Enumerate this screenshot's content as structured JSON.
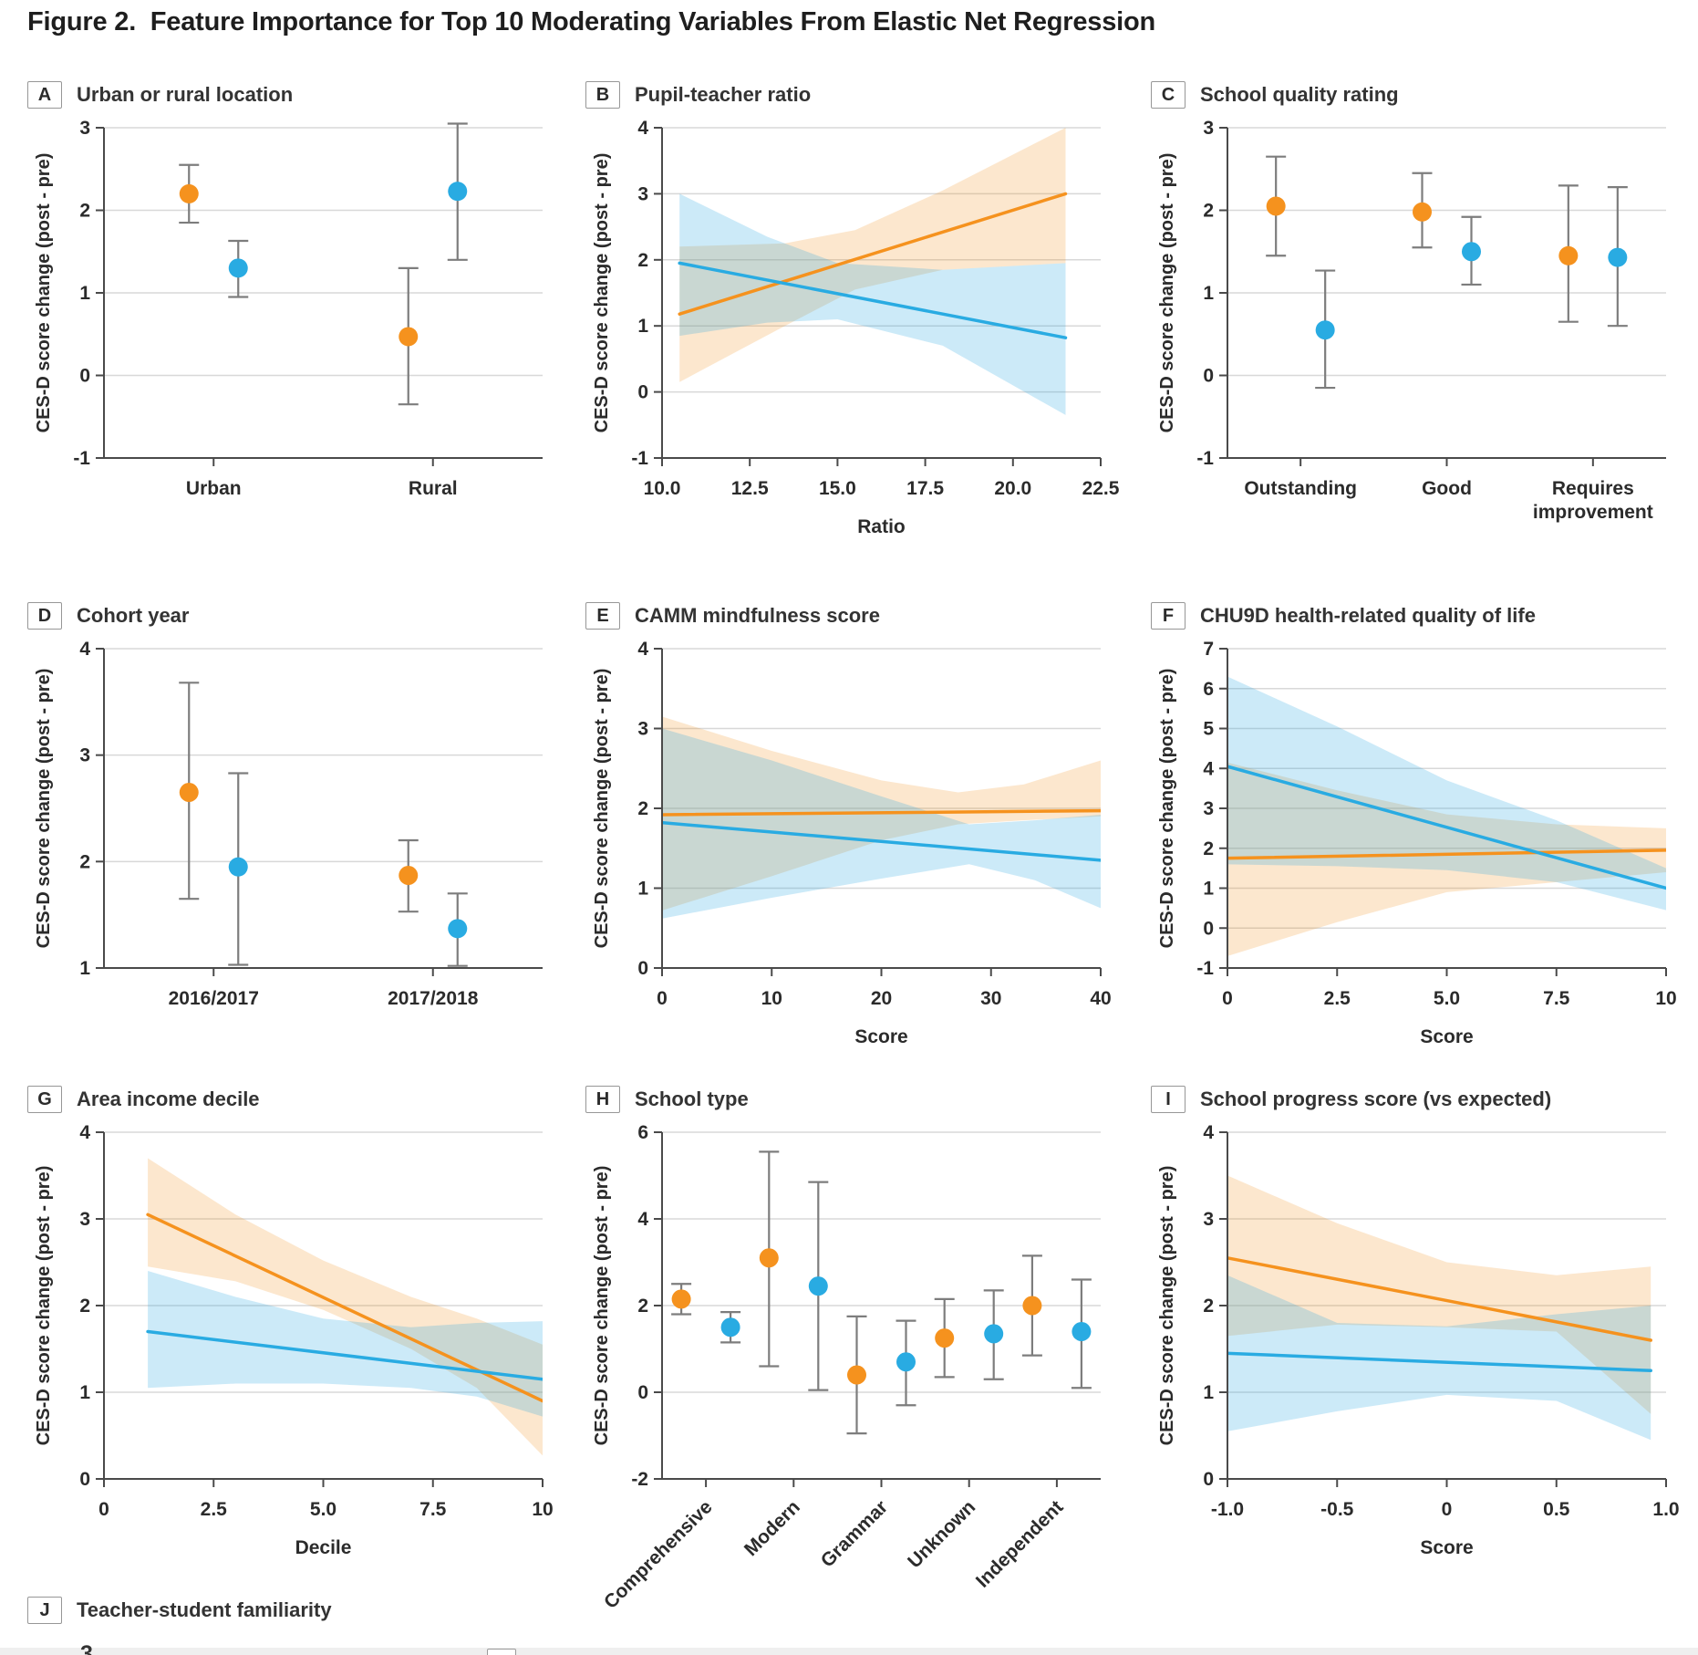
{
  "figure_title": "Figure 2.  Feature Importance for Top 10 Moderating Variables From Elastic Net Regression",
  "ylabel": "CES-D score change (post - pre)",
  "colors": {
    "orange": "#F5921E",
    "blue": "#29ABE2",
    "orange_band": "rgba(243,146,30,0.22)",
    "blue_band": "rgba(43,169,224,0.24)",
    "errorbar": "#7D7D7D",
    "axis": "#4A4A4A",
    "grid": "#D8D8D8",
    "text": "#2B2B2B"
  },
  "partial_bottom": {
    "tick_label": "3"
  },
  "chart_data": [
    {
      "letter": "A",
      "title": "Urban or rural location",
      "type": "pointrange",
      "ylabel": "CES-D score change (post - pre)",
      "ylim": [
        -1,
        3
      ],
      "yticks": [
        "3",
        "2",
        "1",
        "0",
        "-1"
      ],
      "categories": [
        "Urban",
        "Rural"
      ],
      "series": [
        {
          "name": "orange",
          "points": [
            [
              2.2,
              1.85,
              2.55
            ],
            [
              0.47,
              -0.35,
              1.3
            ]
          ]
        },
        {
          "name": "blue",
          "points": [
            [
              1.3,
              0.95,
              1.63
            ],
            [
              2.23,
              1.4,
              3.05
            ]
          ]
        }
      ]
    },
    {
      "letter": "B",
      "title": "Pupil-teacher ratio",
      "type": "lineband",
      "ylabel": "CES-D score change (post - pre)",
      "ylim": [
        -1,
        4
      ],
      "yticks": [
        "4",
        "3",
        "2",
        "1",
        "0",
        "-1"
      ],
      "xlim": [
        10,
        22.5
      ],
      "xticks": [
        "10.0",
        "12.5",
        "15.0",
        "17.5",
        "20.0",
        "22.5"
      ],
      "xlabel": "Ratio",
      "series": [
        {
          "name": "orange",
          "line": [
            [
              10.5,
              1.18
            ],
            [
              21.5,
              3.0
            ]
          ],
          "band": {
            "x": [
              10.5,
              13.5,
              15.5,
              18,
              21.5
            ],
            "hi": [
              2.2,
              2.25,
              2.45,
              3.05,
              4.0
            ],
            "lo": [
              0.15,
              1.0,
              1.55,
              1.85,
              1.95
            ]
          }
        },
        {
          "name": "blue",
          "line": [
            [
              10.5,
              1.95
            ],
            [
              21.5,
              0.82
            ]
          ],
          "band": {
            "x": [
              10.5,
              13,
              15,
              18,
              21.5
            ],
            "hi": [
              3.0,
              2.35,
              1.95,
              1.85,
              1.95
            ],
            "lo": [
              0.85,
              1.05,
              1.1,
              0.7,
              -0.35
            ]
          }
        }
      ]
    },
    {
      "letter": "C",
      "title": "School quality rating",
      "type": "pointrange",
      "ylabel": "CES-D score change (post - pre)",
      "ylim": [
        -1,
        3
      ],
      "yticks": [
        "3",
        "2",
        "1",
        "0",
        "-1"
      ],
      "categories": [
        "Outstanding",
        "Good",
        "Requires\nimprovement"
      ],
      "series": [
        {
          "name": "orange",
          "points": [
            [
              2.05,
              1.45,
              2.65
            ],
            [
              1.98,
              1.55,
              2.45
            ],
            [
              1.45,
              0.65,
              2.3
            ]
          ]
        },
        {
          "name": "blue",
          "points": [
            [
              0.55,
              -0.15,
              1.27
            ],
            [
              1.5,
              1.1,
              1.92
            ],
            [
              1.43,
              0.6,
              2.28
            ]
          ]
        }
      ]
    },
    {
      "letter": "D",
      "title": "Cohort year",
      "type": "pointrange",
      "ylabel": "CES-D score change (post - pre)",
      "ylim": [
        1,
        4
      ],
      "yticks": [
        "4",
        "3",
        "2",
        "1"
      ],
      "categories": [
        "2016/2017",
        "2017/2018"
      ],
      "series": [
        {
          "name": "orange",
          "points": [
            [
              2.65,
              1.65,
              3.68
            ],
            [
              1.87,
              1.53,
              2.2
            ]
          ]
        },
        {
          "name": "blue",
          "points": [
            [
              1.95,
              1.03,
              2.83
            ],
            [
              1.37,
              1.02,
              1.7
            ]
          ]
        }
      ]
    },
    {
      "letter": "E",
      "title": "CAMM mindfulness score",
      "type": "lineband",
      "ylabel": "CES-D score change (post - pre)",
      "ylim": [
        0,
        4
      ],
      "yticks": [
        "4",
        "3",
        "2",
        "1",
        "0"
      ],
      "xlim": [
        0,
        40
      ],
      "xticks": [
        "0",
        "10",
        "20",
        "30",
        "40"
      ],
      "xlabel": "Score",
      "series": [
        {
          "name": "orange",
          "line": [
            [
              0,
              1.92
            ],
            [
              40,
              1.97
            ]
          ],
          "band": {
            "x": [
              0,
              10,
              20,
              27,
              33,
              40
            ],
            "hi": [
              3.15,
              2.72,
              2.35,
              2.2,
              2.3,
              2.6
            ],
            "lo": [
              0.72,
              1.15,
              1.6,
              1.8,
              1.85,
              1.9
            ]
          }
        },
        {
          "name": "blue",
          "line": [
            [
              0,
              1.82
            ],
            [
              40,
              1.35
            ]
          ],
          "band": {
            "x": [
              0,
              10,
              20,
              28,
              34,
              40
            ],
            "hi": [
              3.0,
              2.6,
              2.15,
              1.8,
              1.85,
              1.92
            ],
            "lo": [
              0.62,
              0.88,
              1.12,
              1.3,
              1.1,
              0.75
            ]
          }
        }
      ]
    },
    {
      "letter": "F",
      "title": "CHU9D health-related quality of life",
      "type": "lineband",
      "ylabel": "CES-D score change (post - pre)",
      "ylim": [
        -1,
        7
      ],
      "yticks": [
        "7",
        "6",
        "5",
        "4",
        "3",
        "2",
        "1",
        "0",
        "-1"
      ],
      "xlim": [
        0,
        10
      ],
      "xticks": [
        "0",
        "2.5",
        "5.0",
        "7.5",
        "10"
      ],
      "xlabel": "Score",
      "series": [
        {
          "name": "orange",
          "line": [
            [
              0,
              1.75
            ],
            [
              10,
              1.95
            ]
          ],
          "band": {
            "x": [
              0,
              2.5,
              5,
              7.5,
              10
            ],
            "hi": [
              4.15,
              3.45,
              2.85,
              2.6,
              2.5
            ],
            "lo": [
              -0.7,
              0.15,
              0.9,
              1.15,
              1.4
            ]
          }
        },
        {
          "name": "blue",
          "line": [
            [
              0,
              4.05
            ],
            [
              10,
              1.0
            ]
          ],
          "band": {
            "x": [
              0,
              2.5,
              5,
              7.5,
              10
            ],
            "hi": [
              6.3,
              5.05,
              3.7,
              2.7,
              1.5
            ],
            "lo": [
              1.6,
              1.55,
              1.45,
              1.15,
              0.45
            ]
          }
        }
      ]
    },
    {
      "letter": "G",
      "title": "Area income decile",
      "type": "lineband",
      "ylabel": "CES-D score change (post - pre)",
      "ylim": [
        0,
        4
      ],
      "yticks": [
        "4",
        "3",
        "2",
        "1",
        "0"
      ],
      "xlim": [
        0,
        10
      ],
      "xticks": [
        "0",
        "2.5",
        "5.0",
        "7.5",
        "10"
      ],
      "xlabel": "Decile",
      "series": [
        {
          "name": "orange",
          "line": [
            [
              1,
              3.05
            ],
            [
              10,
              0.9
            ]
          ],
          "band": {
            "x": [
              1,
              3,
              5,
              7,
              8.5,
              10
            ],
            "hi": [
              3.7,
              3.05,
              2.52,
              2.1,
              1.85,
              1.55
            ],
            "lo": [
              2.45,
              2.28,
              1.95,
              1.5,
              1.05,
              0.27
            ]
          }
        },
        {
          "name": "blue",
          "line": [
            [
              1,
              1.7
            ],
            [
              10,
              1.15
            ]
          ],
          "band": {
            "x": [
              1,
              3,
              5,
              7,
              8.5,
              10
            ],
            "hi": [
              2.4,
              2.1,
              1.85,
              1.75,
              1.8,
              1.82
            ],
            "lo": [
              1.05,
              1.1,
              1.1,
              1.05,
              0.95,
              0.72
            ]
          }
        }
      ]
    },
    {
      "letter": "H",
      "title": "School type",
      "type": "pointrange",
      "ylabel": "CES-D score change (post - pre)",
      "ylim": [
        -2,
        6
      ],
      "yticks": [
        "6",
        "4",
        "2",
        "0",
        "-2"
      ],
      "categories": [
        "Comprehensive",
        "Modern",
        "Grammar",
        "Unknown",
        "Independent"
      ],
      "series": [
        {
          "name": "orange",
          "points": [
            [
              2.15,
              1.8,
              2.5
            ],
            [
              3.1,
              0.6,
              5.55
            ],
            [
              0.4,
              -0.95,
              1.75
            ],
            [
              1.25,
              0.35,
              2.15
            ],
            [
              2.0,
              0.85,
              3.15
            ]
          ]
        },
        {
          "name": "blue",
          "points": [
            [
              1.5,
              1.15,
              1.85
            ],
            [
              2.45,
              0.05,
              4.85
            ],
            [
              0.7,
              -0.3,
              1.65
            ],
            [
              1.35,
              0.3,
              2.35
            ],
            [
              1.4,
              0.1,
              2.6
            ]
          ]
        }
      ]
    },
    {
      "letter": "I",
      "title": "School progress score (vs expected)",
      "type": "lineband",
      "ylabel": "CES-D score change (post - pre)",
      "ylim": [
        0,
        4
      ],
      "yticks": [
        "4",
        "3",
        "2",
        "1",
        "0"
      ],
      "xlim": [
        -1,
        1
      ],
      "xticks": [
        "-1.0",
        "-0.5",
        "0",
        "0.5",
        "1.0"
      ],
      "xlabel": "Score",
      "series": [
        {
          "name": "orange",
          "line": [
            [
              -1,
              2.55
            ],
            [
              0.93,
              1.6
            ]
          ],
          "band": {
            "x": [
              -1,
              -0.5,
              0,
              0.5,
              0.93
            ],
            "hi": [
              3.5,
              2.95,
              2.5,
              2.35,
              2.45
            ],
            "lo": [
              1.65,
              1.78,
              1.75,
              1.7,
              0.75
            ]
          }
        },
        {
          "name": "blue",
          "line": [
            [
              -1,
              1.45
            ],
            [
              0.93,
              1.25
            ]
          ],
          "band": {
            "x": [
              -1,
              -0.5,
              0,
              0.5,
              0.93
            ],
            "hi": [
              2.35,
              1.8,
              1.76,
              1.9,
              2.0
            ],
            "lo": [
              0.55,
              0.78,
              0.97,
              0.9,
              0.45
            ]
          }
        }
      ]
    },
    {
      "letter": "J",
      "title": "Teacher-student familiarity",
      "type": "header_only"
    }
  ]
}
